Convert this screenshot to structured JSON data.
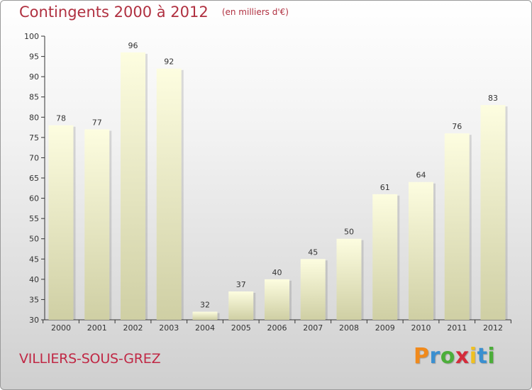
{
  "header": {
    "title": "Contingents 2000 à 2012",
    "subtitle": "(en milliers d'€)"
  },
  "footer": {
    "location": "VILLIERS-SOUS-GREZ",
    "logo_letters": [
      "P",
      "r",
      "o",
      "x",
      "i",
      "t",
      "i"
    ],
    "logo_colors": [
      "#f08a1c",
      "#3a8fd0",
      "#4cae3a",
      "#d42b3a",
      "#f0c020",
      "#3a8fd0",
      "#4cae3a"
    ]
  },
  "colors": {
    "bar_top": "#fdfde0",
    "bar_bottom": "#cfcfa4",
    "axis": "#333333"
  },
  "chart_data": {
    "type": "bar",
    "title": "Contingents 2000 à 2012",
    "subtitle": "(en milliers d'€)",
    "categories": [
      "2000",
      "2001",
      "2002",
      "2003",
      "2004",
      "2005",
      "2006",
      "2007",
      "2008",
      "2009",
      "2010",
      "2011",
      "2012"
    ],
    "values": [
      78,
      77,
      96,
      92,
      32,
      37,
      40,
      45,
      50,
      61,
      64,
      76,
      83
    ],
    "ylim": [
      30,
      100
    ],
    "yticks": [
      30,
      35,
      40,
      45,
      50,
      55,
      60,
      65,
      70,
      75,
      80,
      85,
      90,
      95,
      100
    ],
    "grid": false,
    "legend": "none",
    "xlabel": "",
    "ylabel": ""
  }
}
